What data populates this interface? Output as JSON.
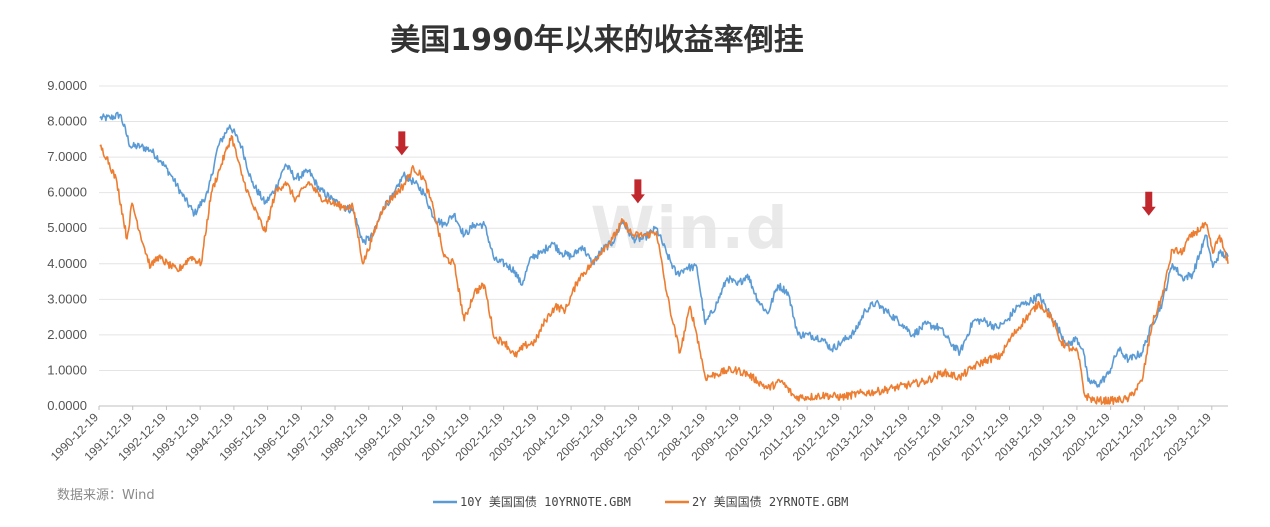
{
  "colors": {
    "series_10y": "#5b9bd5",
    "series_2y": "#ed7d31",
    "arrow": "#c0282d",
    "grid": "#e4e4e4"
  },
  "watermark": "Win.d",
  "source": "数据来源：Wind",
  "chart_data": {
    "type": "line",
    "title": "美国1990年以来的收益率倒挂",
    "xlabel": "",
    "ylabel": "",
    "ylim": [
      0,
      9
    ],
    "yticks": [
      "9.0000",
      "8.0000",
      "7.0000",
      "6.0000",
      "5.0000",
      "4.0000",
      "3.0000",
      "2.0000",
      "1.0000",
      "0.0000"
    ],
    "xlim": [
      1990.97,
      2024.45
    ],
    "xticks": [
      "1990-12-19",
      "1991-12-19",
      "1992-12-19",
      "1993-12-19",
      "1994-12-19",
      "1995-12-19",
      "1996-12-19",
      "1997-12-19",
      "1998-12-19",
      "1999-12-19",
      "2000-12-19",
      "2001-12-19",
      "2002-12-19",
      "2003-12-19",
      "2004-12-19",
      "2005-12-19",
      "2006-12-19",
      "2007-12-19",
      "2008-12-19",
      "2009-12-19",
      "2010-12-19",
      "2011-12-19",
      "2012-12-19",
      "2013-12-19",
      "2014-12-19",
      "2015-12-19",
      "2016-12-19",
      "2017-12-19",
      "2018-12-19",
      "2019-12-19",
      "2020-12-19",
      "2021-12-19",
      "2022-12-19",
      "2023-12-19"
    ],
    "legend_position": "bottom",
    "grid": true,
    "series": [
      {
        "name": "10Y 美国国债 10YRNOTE.GBM",
        "color": "#5b9bd5",
        "x": [
          1991.0,
          1991.3,
          1991.6,
          1991.9,
          1992.2,
          1992.5,
          1992.8,
          1993.1,
          1993.4,
          1993.8,
          1994.2,
          1994.5,
          1994.85,
          1995.2,
          1995.5,
          1995.9,
          1996.2,
          1996.5,
          1996.8,
          1997.2,
          1997.5,
          1997.9,
          1998.2,
          1998.5,
          1998.8,
          1999.1,
          1999.4,
          1999.7,
          2000.0,
          2000.3,
          2000.6,
          2000.9,
          2001.2,
          2001.5,
          2001.8,
          2002.1,
          2002.4,
          2002.7,
          2003.0,
          2003.3,
          2003.5,
          2003.8,
          2004.1,
          2004.4,
          2004.7,
          2005.0,
          2005.3,
          2005.6,
          2005.9,
          2006.2,
          2006.5,
          2006.8,
          2007.1,
          2007.5,
          2007.8,
          2008.1,
          2008.4,
          2008.7,
          2008.95,
          2009.3,
          2009.6,
          2009.9,
          2010.2,
          2010.5,
          2010.8,
          2011.1,
          2011.4,
          2011.7,
          2012.0,
          2012.4,
          2012.7,
          2013.0,
          2013.4,
          2013.7,
          2014.0,
          2014.4,
          2014.8,
          2015.1,
          2015.5,
          2015.9,
          2016.2,
          2016.5,
          2016.9,
          2017.2,
          2017.6,
          2017.9,
          2018.2,
          2018.5,
          2018.85,
          2019.1,
          2019.4,
          2019.7,
          2019.95,
          2020.15,
          2020.3,
          2020.6,
          2020.9,
          2021.2,
          2021.5,
          2021.9,
          2022.2,
          2022.5,
          2022.8,
          2023.1,
          2023.4,
          2023.8,
          2024.0,
          2024.2,
          2024.45
        ],
        "values": [
          8.1,
          8.1,
          8.2,
          7.3,
          7.3,
          7.2,
          6.9,
          6.5,
          6.0,
          5.4,
          6.0,
          7.3,
          7.9,
          7.3,
          6.3,
          5.7,
          6.1,
          6.8,
          6.4,
          6.6,
          6.1,
          5.8,
          5.6,
          5.5,
          4.6,
          4.8,
          5.6,
          5.9,
          6.5,
          6.3,
          6.0,
          5.3,
          5.1,
          5.4,
          4.8,
          5.1,
          5.1,
          4.1,
          4.0,
          3.8,
          3.4,
          4.2,
          4.3,
          4.6,
          4.3,
          4.2,
          4.5,
          4.0,
          4.4,
          4.6,
          5.2,
          4.7,
          4.7,
          5.0,
          4.3,
          3.7,
          3.9,
          3.9,
          2.3,
          2.9,
          3.6,
          3.4,
          3.7,
          3.0,
          2.6,
          3.4,
          3.2,
          2.0,
          2.0,
          1.9,
          1.6,
          1.8,
          2.1,
          2.7,
          2.9,
          2.6,
          2.3,
          2.0,
          2.3,
          2.2,
          1.8,
          1.5,
          2.4,
          2.4,
          2.2,
          2.4,
          2.8,
          2.9,
          3.1,
          2.7,
          2.2,
          1.7,
          1.9,
          1.6,
          0.7,
          0.6,
          0.9,
          1.6,
          1.3,
          1.5,
          2.3,
          2.9,
          4.0,
          3.6,
          3.7,
          4.8,
          3.9,
          4.3,
          4.2
        ]
      },
      {
        "name": "2Y 美国国债 2YRNOTE.GBM",
        "color": "#ed7d31",
        "x": [
          1991.0,
          1991.2,
          1991.5,
          1991.8,
          1991.95,
          1992.3,
          1992.5,
          1992.7,
          1993.0,
          1993.3,
          1993.7,
          1994.0,
          1994.3,
          1994.6,
          1994.9,
          1995.2,
          1995.5,
          1995.9,
          1996.2,
          1996.5,
          1996.8,
          1997.2,
          1997.5,
          1997.9,
          1998.2,
          1998.5,
          1998.8,
          1999.1,
          1999.4,
          1999.7,
          2000.0,
          2000.3,
          2000.6,
          2000.9,
          2001.2,
          2001.5,
          2001.8,
          2002.1,
          2002.4,
          2002.7,
          2003.0,
          2003.3,
          2003.6,
          2003.9,
          2004.2,
          2004.5,
          2004.8,
          2005.2,
          2005.6,
          2005.9,
          2006.2,
          2006.5,
          2006.8,
          2007.2,
          2007.5,
          2007.8,
          2008.0,
          2008.2,
          2008.5,
          2008.7,
          2008.95,
          2009.3,
          2009.6,
          2009.9,
          2010.2,
          2010.5,
          2010.8,
          2011.2,
          2011.6,
          2012.0,
          2012.5,
          2013.0,
          2013.5,
          2014.0,
          2014.5,
          2015.0,
          2015.5,
          2016.0,
          2016.5,
          2016.9,
          2017.3,
          2017.7,
          2018.0,
          2018.4,
          2018.85,
          2019.2,
          2019.5,
          2019.8,
          2020.0,
          2020.2,
          2020.5,
          2021.0,
          2021.5,
          2021.9,
          2022.2,
          2022.5,
          2022.8,
          2023.1,
          2023.2,
          2023.5,
          2023.8,
          2024.0,
          2024.2,
          2024.45
        ],
        "values": [
          7.3,
          7.0,
          6.3,
          4.7,
          5.7,
          4.5,
          3.9,
          4.2,
          4.0,
          3.8,
          4.2,
          4.0,
          6.0,
          6.8,
          7.6,
          6.5,
          5.7,
          4.9,
          6.0,
          6.3,
          5.8,
          6.3,
          5.9,
          5.7,
          5.6,
          5.6,
          4.0,
          4.8,
          5.6,
          5.9,
          6.2,
          6.7,
          6.4,
          5.5,
          4.2,
          4.0,
          2.4,
          3.2,
          3.4,
          1.9,
          1.8,
          1.4,
          1.7,
          1.8,
          2.4,
          2.8,
          2.7,
          3.6,
          4.0,
          4.4,
          4.7,
          5.2,
          4.8,
          4.8,
          4.9,
          3.2,
          2.3,
          1.5,
          2.8,
          2.0,
          0.8,
          0.9,
          1.0,
          1.0,
          0.9,
          0.7,
          0.5,
          0.7,
          0.25,
          0.25,
          0.3,
          0.25,
          0.35,
          0.4,
          0.5,
          0.6,
          0.7,
          0.95,
          0.8,
          1.1,
          1.3,
          1.4,
          1.9,
          2.4,
          2.9,
          2.5,
          1.8,
          1.6,
          1.5,
          0.3,
          0.15,
          0.15,
          0.2,
          0.7,
          2.3,
          3.1,
          4.4,
          4.3,
          4.6,
          4.9,
          5.1,
          4.3,
          4.8,
          4.0
        ]
      }
    ],
    "annotations": [
      {
        "type": "arrow",
        "x": 1999.95,
        "y": 7.05
      },
      {
        "type": "arrow",
        "x": 2006.95,
        "y": 5.7
      },
      {
        "type": "arrow",
        "x": 2022.1,
        "y": 5.35
      }
    ]
  }
}
